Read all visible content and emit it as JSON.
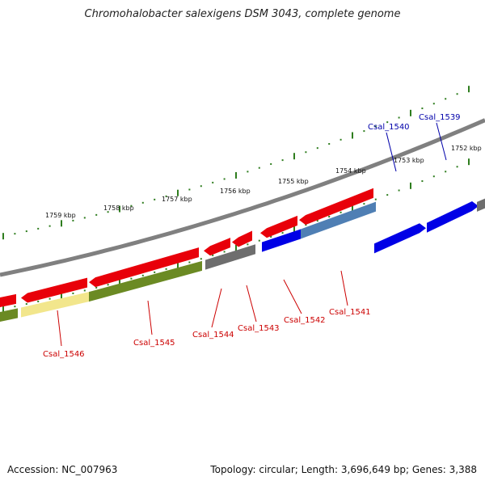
{
  "title": "Chromohalobacter salexigens DSM 3043, complete genome",
  "footer": {
    "accession": "Accession: NC_007963",
    "summary": "Topology: circular; Length: 3,696,649 bp; Genes: 3,388"
  },
  "colors": {
    "backbone": "#808080",
    "tick": "#2e7d1e",
    "gene_red": "#e8000a",
    "gene_blue": "#0000e6",
    "gene_gray": "#6e6e6e",
    "gene_steelblue": "#4f7fb4",
    "gene_olive": "#6b8a23",
    "gene_pale": "#f2e68c",
    "label_red": "#cc0000",
    "label_blue": "#0000aa"
  },
  "scale_labels": [
    "1759 kbp",
    "1758 kbp",
    "1757 kbp",
    "1756 kbp",
    "1755 kbp",
    "1754 kbp",
    "1753 kbp",
    "1752 kbp"
  ],
  "gene_labels": {
    "top": [
      "Csal_1540",
      "Csal_1539"
    ],
    "bottom": [
      "Csal_1546",
      "Csal_1545",
      "Csal_1544",
      "Csal_1543",
      "Csal_1542",
      "Csal_1541"
    ]
  }
}
